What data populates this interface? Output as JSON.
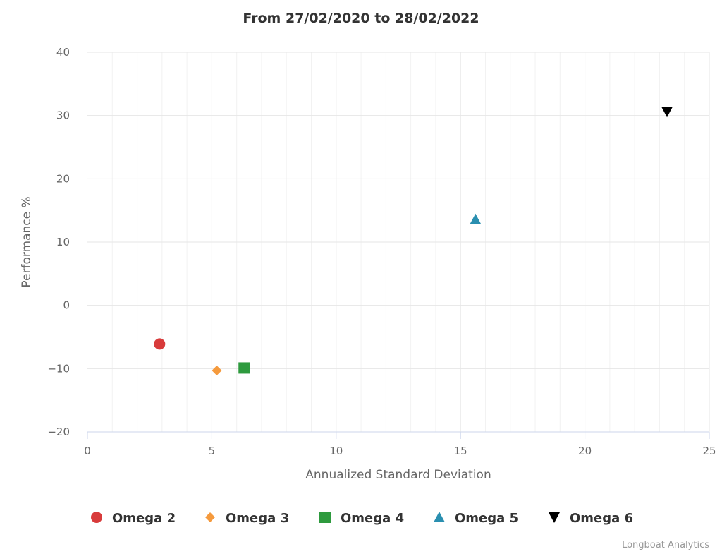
{
  "chart_data": {
    "type": "scatter",
    "title": "From 27/02/2020 to 28/02/2022",
    "xlabel": "Annualized Standard Deviation",
    "ylabel": "Performance %",
    "xlim": [
      0,
      25
    ],
    "ylim": [
      -20,
      40
    ],
    "x_ticks": [
      0,
      5,
      10,
      15,
      20,
      25
    ],
    "y_ticks": [
      -20,
      -10,
      0,
      10,
      20,
      30,
      40
    ],
    "x_tick_labels": [
      "0",
      "5",
      "10",
      "15",
      "20",
      "25"
    ],
    "y_tick_labels": [
      "−20",
      "−10",
      "0",
      "10",
      "20",
      "30",
      "40"
    ],
    "grid": true,
    "legend_position": "bottom",
    "series": [
      {
        "name": "Omega 2",
        "marker": "circle",
        "color": "#d83b3b",
        "points": [
          {
            "x": 2.9,
            "y": -6.1
          }
        ]
      },
      {
        "name": "Omega 3",
        "marker": "diamond",
        "color": "#f59a3d",
        "points": [
          {
            "x": 5.2,
            "y": -10.3
          }
        ]
      },
      {
        "name": "Omega 4",
        "marker": "square",
        "color": "#2e9a3e",
        "points": [
          {
            "x": 6.3,
            "y": -9.9
          }
        ]
      },
      {
        "name": "Omega 5",
        "marker": "triangle",
        "color": "#2a8fb0",
        "points": [
          {
            "x": 15.6,
            "y": 13.6
          }
        ]
      },
      {
        "name": "Omega 6",
        "marker": "triangle-down",
        "color": "#000000",
        "points": [
          {
            "x": 23.3,
            "y": 30.6
          }
        ]
      }
    ]
  },
  "credit": "Longboat Analytics"
}
